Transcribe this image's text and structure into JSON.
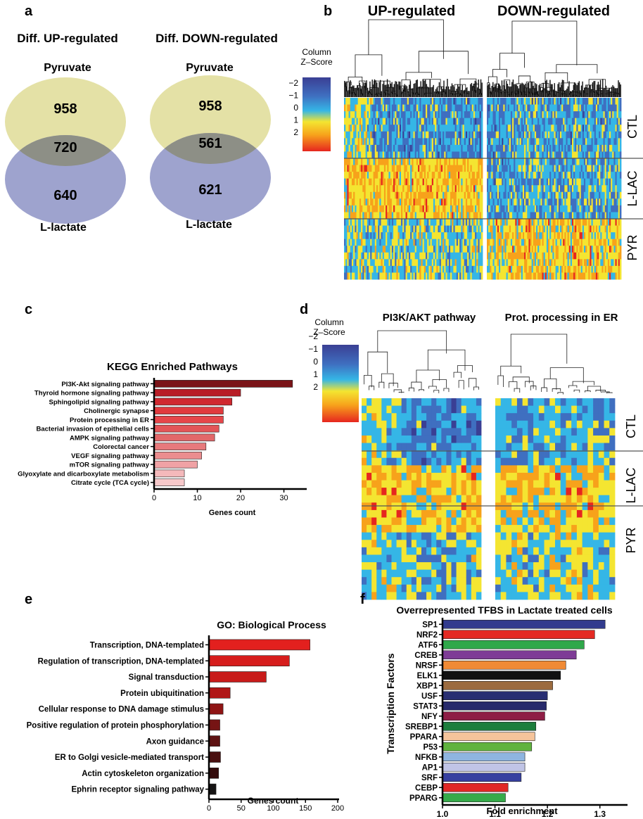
{
  "panel_letters": {
    "a": "a",
    "b": "b",
    "c": "c",
    "d": "d",
    "e": "e",
    "f": "f"
  },
  "colors": {
    "venn_top": "#e4e1a6",
    "venn_bottom": "#9ea3ce",
    "venn_overlap": "#8d8f86",
    "heat_scale": [
      "#3a3f94",
      "#3f6fc0",
      "#35b6e6",
      "#f4e531",
      "#f7a21b",
      "#e6261f"
    ]
  },
  "chart_data": [
    {
      "id": "a",
      "type": "venn",
      "diagrams": [
        {
          "title": "Diff. UP-regulated",
          "set_top": "Pyruvate",
          "set_bottom": "L-lactate",
          "top_only": 958,
          "overlap": 720,
          "bottom_only": 640
        },
        {
          "title": "Diff. DOWN-regulated",
          "set_top": "Pyruvate",
          "set_bottom": "L-lactate",
          "top_only": 958,
          "overlap": 561,
          "bottom_only": 621
        }
      ]
    },
    {
      "id": "b",
      "type": "heatmap",
      "column_titles": [
        "UP-regulated",
        "DOWN-regulated"
      ],
      "row_groups": [
        "CTL",
        "L-LAC",
        "PYR"
      ],
      "legend_title": [
        "Column",
        "Z–Score"
      ],
      "legend_ticks": [
        "−2",
        "−1",
        "0",
        "1",
        "2"
      ],
      "legend_range": [
        -2,
        2
      ]
    },
    {
      "id": "c",
      "type": "bar",
      "orientation": "horizontal",
      "title": "KEGG Enriched Pathways",
      "xlabel": "Genes count",
      "xlim": [
        0,
        33
      ],
      "xticks": [
        "0",
        "10",
        "20",
        "30"
      ],
      "categories": [
        "PI3K-Akt signaling pathway",
        "Thyroid hormone signaling pathway",
        "Sphingolipid signaling pathway",
        "Cholinergic synapse",
        "Protein processing in ER",
        "Bacterial invasion of epithelial cells",
        "AMPK signaling pathway",
        "Colorectal cancer",
        "VEGF signaling pathway",
        "mTOR signaling pathway",
        "Glyoxylate and dicarboxylate metabolism",
        "Citrate cycle (TCA cycle)"
      ],
      "values": [
        32,
        20,
        18,
        16,
        16,
        15,
        14,
        12,
        11,
        10,
        7,
        7
      ],
      "bar_colors": [
        "#7a1418",
        "#b81d26",
        "#d0282f",
        "#e13a3e",
        "#e6464a",
        "#e35558",
        "#e2686a",
        "#e77a7c",
        "#eb8d8f",
        "#f0a2a5",
        "#f4b9bb",
        "#f6c8ca"
      ]
    },
    {
      "id": "d",
      "type": "heatmap",
      "column_titles": [
        "PI3K/AKT pathway",
        "Prot. processing in ER"
      ],
      "row_groups": [
        "CTL",
        "L-LAC",
        "PYR"
      ],
      "legend_title": [
        "Column",
        "Z–Score"
      ],
      "legend_ticks": [
        "−2",
        "−1",
        "0",
        "1",
        "2"
      ],
      "legend_range": [
        -2,
        2
      ]
    },
    {
      "id": "e",
      "type": "bar",
      "orientation": "horizontal",
      "title": "GO: Biological Process",
      "xlabel": "Genes count",
      "xlim": [
        0,
        200
      ],
      "xticks": [
        "0",
        "50",
        "100",
        "150",
        "200"
      ],
      "categories": [
        "Transcription, DNA-templated",
        "Regulation of transcription, DNA-templated",
        "Signal transduction",
        "Protein ubiquitination",
        "Cellular response to DNA damage stimulus",
        "Positive regulation of protein phosphorylation",
        "Axon guidance",
        "ER to Golgi vesicle-mediated transport",
        "Actin cytoskeleton organization",
        "Ephrin receptor signaling pathway"
      ],
      "values": [
        157,
        125,
        89,
        33,
        22,
        17,
        17,
        18,
        15,
        11
      ],
      "bar_colors": [
        "#e3201e",
        "#d61d1c",
        "#c81b1a",
        "#b01717",
        "#8f1414",
        "#761414",
        "#5e1212",
        "#4a1010",
        "#350c0c",
        "#161414"
      ]
    },
    {
      "id": "f",
      "type": "bar",
      "orientation": "horizontal",
      "title": "Overrepresented TFBS in Lactate treated cells",
      "xlabel": "Fold enrichment",
      "ylabel": "Transcription Factors",
      "xlim": [
        1.0,
        1.35
      ],
      "xticks": [
        "1.0",
        "1.1",
        "1.2",
        "1.3"
      ],
      "categories": [
        "SP1",
        "NRF2",
        "ATF6",
        "CREB",
        "NRSF",
        "ELK1",
        "XBP1",
        "USF",
        "STAT3",
        "NFY",
        "SREBP1",
        "PPARA",
        "P53",
        "NFKB",
        "AP1",
        "SRF",
        "CEBP",
        "PPARG"
      ],
      "values": [
        1.31,
        1.29,
        1.27,
        1.255,
        1.235,
        1.225,
        1.21,
        1.2,
        1.198,
        1.195,
        1.178,
        1.176,
        1.17,
        1.157,
        1.157,
        1.15,
        1.125,
        1.12
      ],
      "bar_colors": [
        "#323b8e",
        "#e42a23",
        "#2fa84a",
        "#7e3c96",
        "#f08a35",
        "#111111",
        "#9c6b3f",
        "#282e72",
        "#272a6b",
        "#8e1d45",
        "#1c7e3c",
        "#f5c49b",
        "#60b33f",
        "#8fb5e0",
        "#c0c4e6",
        "#3740a0",
        "#e02826",
        "#36ab4a"
      ]
    }
  ]
}
